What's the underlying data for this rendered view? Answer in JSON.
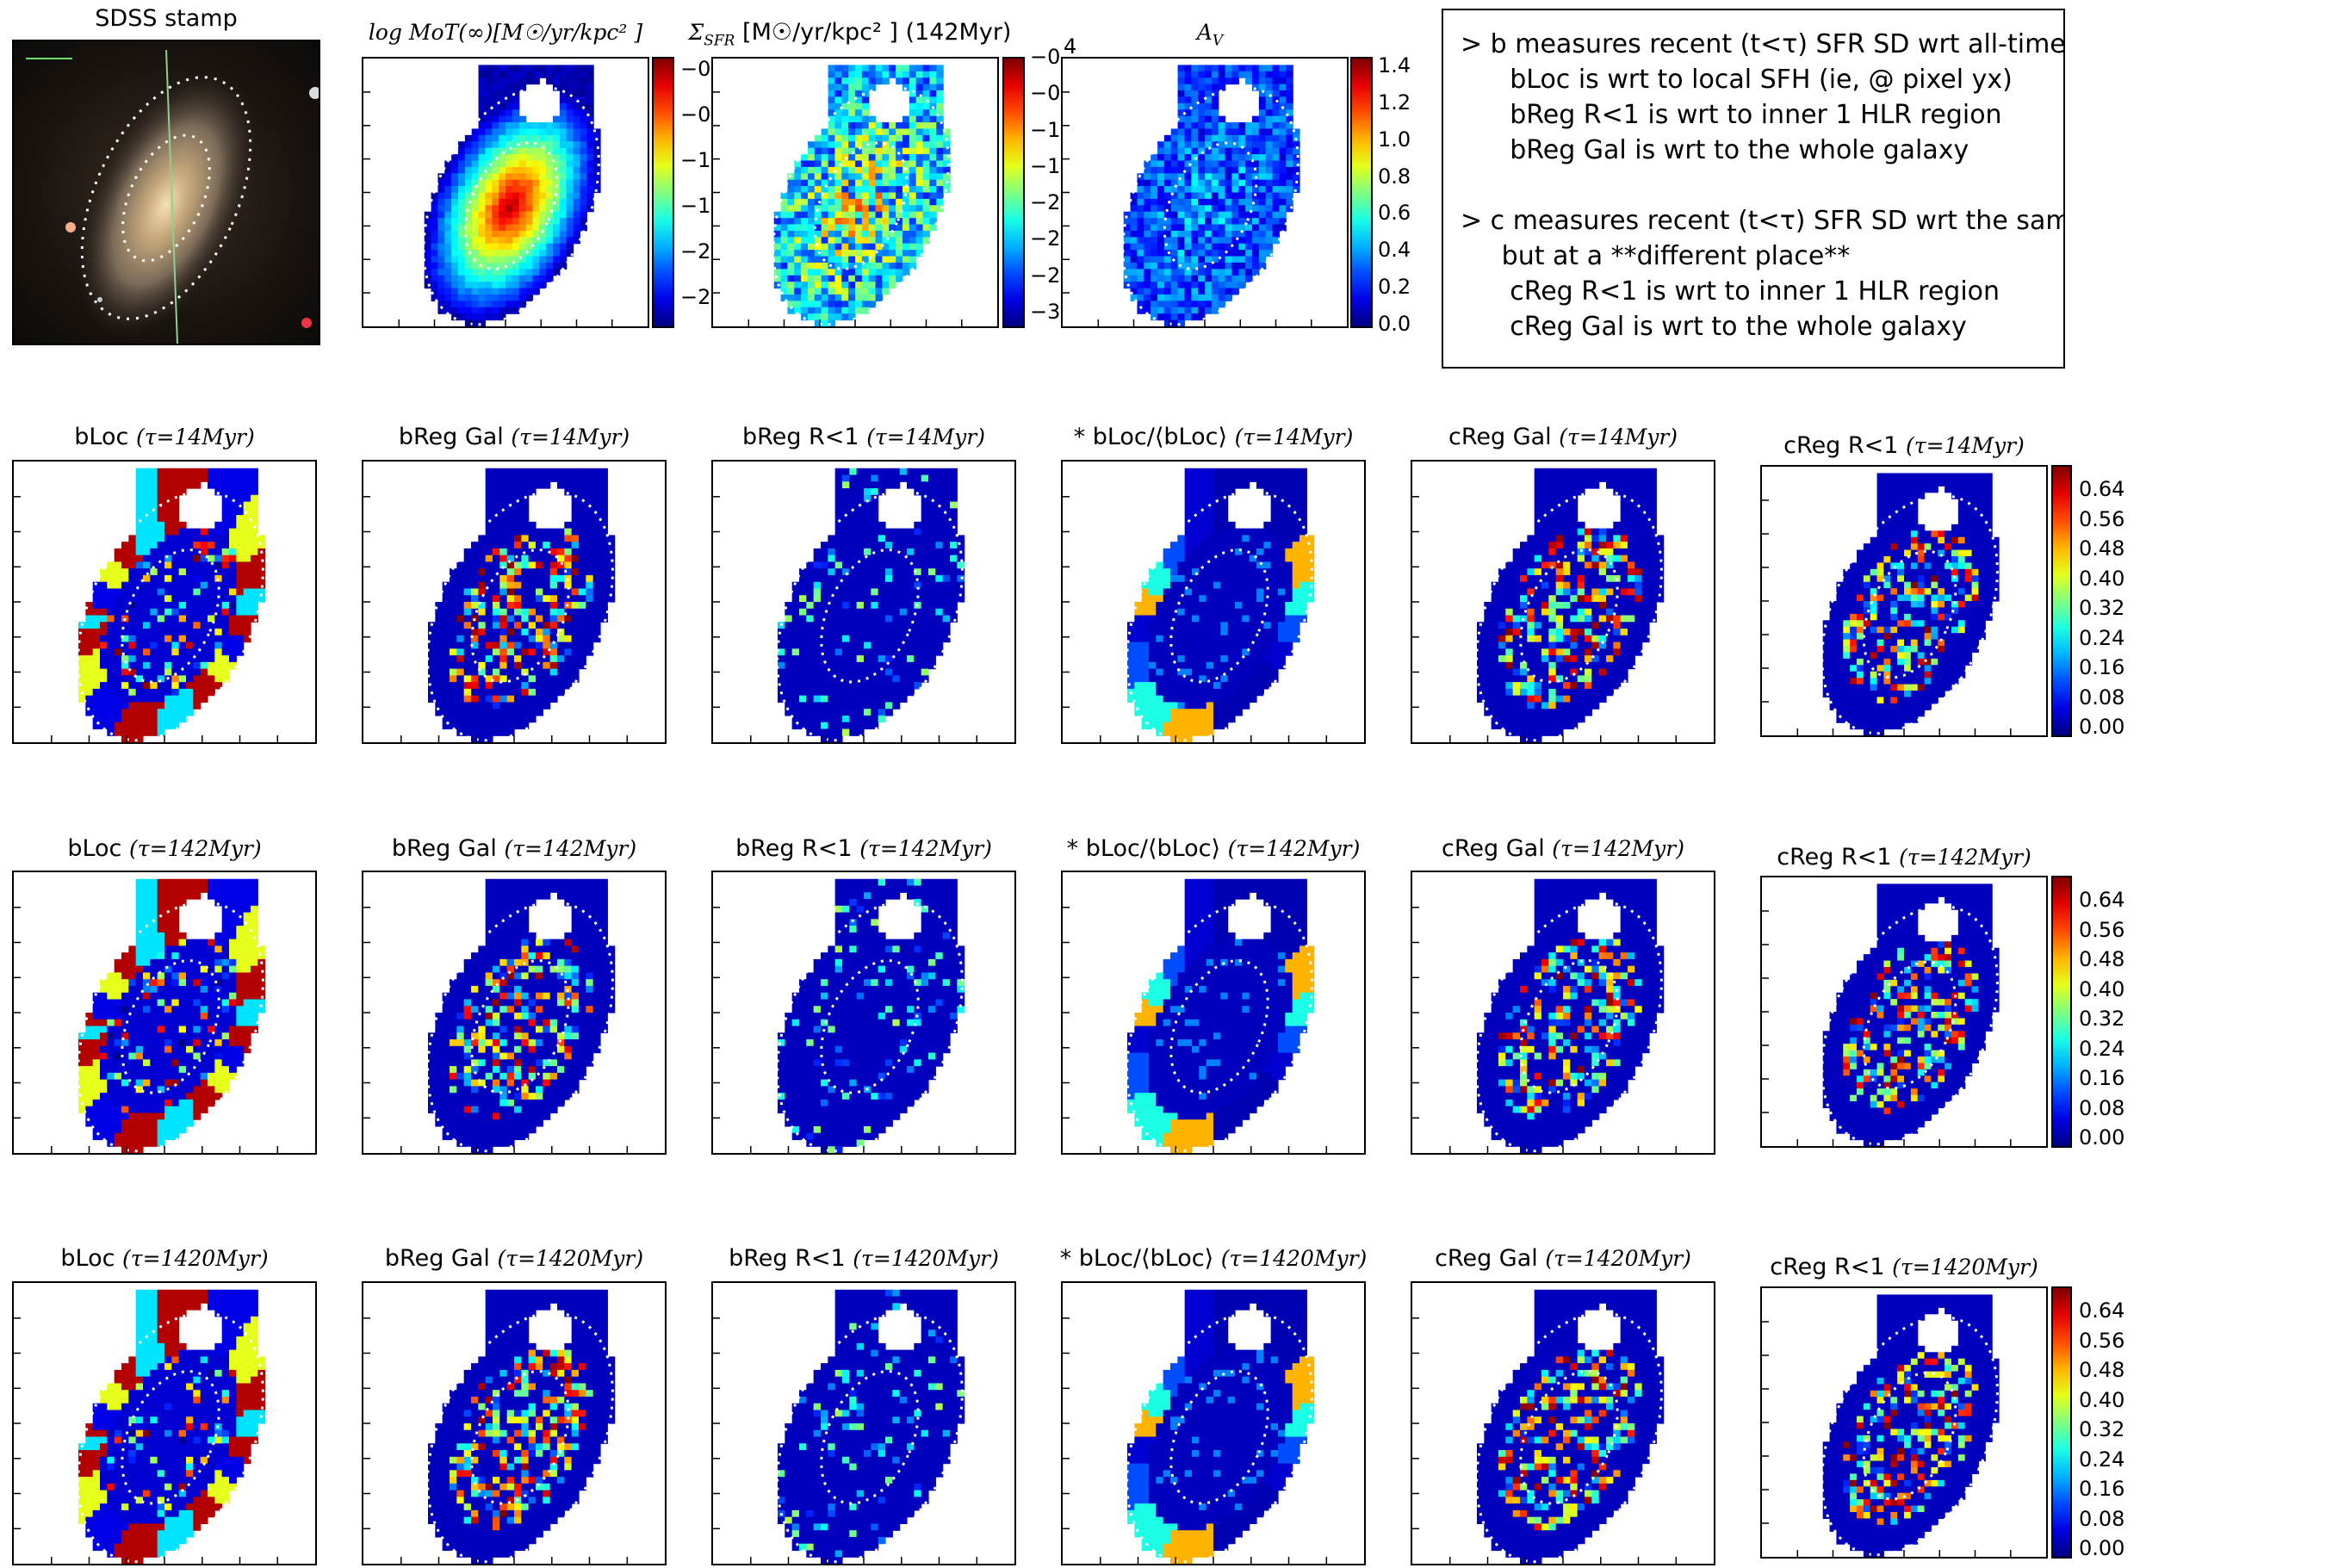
{
  "header": {
    "stamp_title": "SDSS stamp",
    "mot_title": "log MoT(∞)[M☉/yr/kpc² ]",
    "sfr_title": "Σ",
    "sfr_sub": "SFR",
    "sfr_title_rest": " [M☉/yr/kpc² ] (142Myr)",
    "av_title": "A",
    "av_sub": "V"
  },
  "notes": {
    "lines": [
      "> b measures recent (t<τ) SFR SD wrt all-times SFR SD",
      "      bLoc is wrt to local SFH (ie, @ pixel yx)",
      "      bReg R<1 is wrt to inner 1 HLR region",
      "      bReg Gal is wrt to the whole galaxy",
      "",
      "> c measures recent (t<τ) SFR SD wrt the same recent SFR S",
      "     but at a **different place**",
      "      cReg R<1 is wrt to inner 1 HLR region",
      "      cReg Gal is wrt to the whole galaxy"
    ]
  },
  "colorbars": {
    "mot_ticks": [
      "−0",
      "−0",
      "−1",
      "−1",
      "−2",
      "−2"
    ],
    "sfr_ticks": [
      "−0",
      "−0",
      "−1",
      "−1",
      "−2",
      "−2",
      "−2",
      "−3"
    ],
    "sfr_top_tick": "4",
    "av_ticks": [
      "1.4",
      "1.2",
      "1.0",
      "0.8",
      "0.6",
      "0.4",
      "0.2",
      "0.0"
    ],
    "c_ticks": [
      "0.64",
      "0.56",
      "0.48",
      "0.40",
      "0.32",
      "0.24",
      "0.16",
      "0.08",
      "0.00"
    ]
  },
  "rows": [
    {
      "tau": "τ=14Myr",
      "panels": [
        "bLoc",
        "bReg Gal",
        "bReg R<1",
        "* bLoc/⟨bLoc⟩",
        "cReg Gal",
        "cReg R<1"
      ]
    },
    {
      "tau": "τ=142Myr",
      "panels": [
        "bLoc",
        "bReg Gal",
        "bReg R<1",
        "* bLoc/⟨bLoc⟩",
        "cReg Gal",
        "cReg R<1"
      ]
    },
    {
      "tau": "τ=1420Myr",
      "panels": [
        "bLoc",
        "bReg Gal",
        "bReg R<1",
        "* bLoc/⟨bLoc⟩",
        "cReg Gal",
        "cReg R<1"
      ]
    }
  ],
  "chart_data": {
    "type": "heatmap",
    "colormap": "jet",
    "colorbar_ranges": {
      "log_MoT": [
        -2.3,
        0.0
      ],
      "Sigma_SFR": [
        -3.2,
        -0.4
      ],
      "A_V": [
        0.0,
        1.55
      ],
      "cReg": [
        0.0,
        0.68
      ]
    }
  }
}
